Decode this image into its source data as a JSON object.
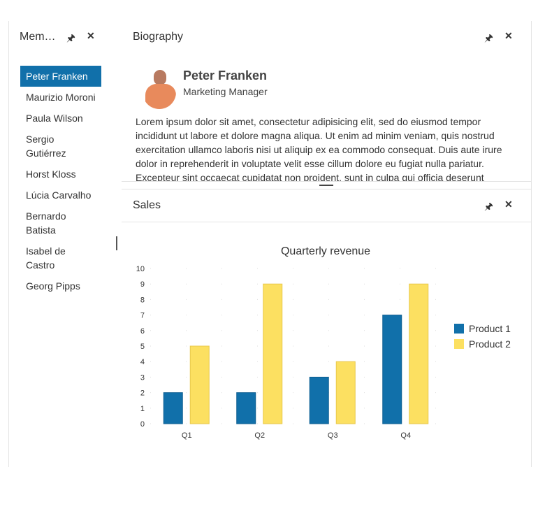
{
  "members": {
    "title": "Mem…",
    "items": [
      "Peter Franken",
      "Maurizio Moroni",
      "Paula Wilson",
      "Sergio Gutiérrez",
      "Horst Kloss",
      "Lúcia Carvalho",
      "Bernardo Batista",
      "Isabel de Castro",
      "Georg Pipps"
    ],
    "selected": 0
  },
  "biography": {
    "title": "Biography",
    "name": "Peter Franken",
    "role": "Marketing Manager",
    "text": "Lorem ipsum dolor sit amet, consectetur adipisicing elit, sed do eiusmod tempor incididunt ut labore et dolore magna aliqua. Ut enim ad minim veniam, quis nostrud exercitation ullamco laboris nisi ut aliquip ex ea commodo consequat. Duis aute irure dolor in reprehenderit in voluptate velit esse cillum dolore eu fugiat nulla pariatur. Excepteur sint occaecat cupidatat non proident, sunt in culpa qui officia deserunt mollit anim id est laborum."
  },
  "sales": {
    "title": "Sales"
  },
  "icons": {
    "pin": "pin-icon",
    "close": "close-icon"
  },
  "chart_data": {
    "type": "bar",
    "title": "Quarterly revenue",
    "categories": [
      "Q1",
      "Q2",
      "Q3",
      "Q4"
    ],
    "series": [
      {
        "name": "Product 1",
        "values": [
          2,
          2,
          3,
          7
        ],
        "color": "#1170aa"
      },
      {
        "name": "Product 2",
        "values": [
          5,
          9,
          4,
          9
        ],
        "color": "#fce061"
      }
    ],
    "ylim": [
      0,
      10
    ],
    "yticks": [
      0,
      1,
      2,
      3,
      4,
      5,
      6,
      7,
      8,
      9,
      10
    ],
    "grid": true,
    "legend": "right"
  }
}
